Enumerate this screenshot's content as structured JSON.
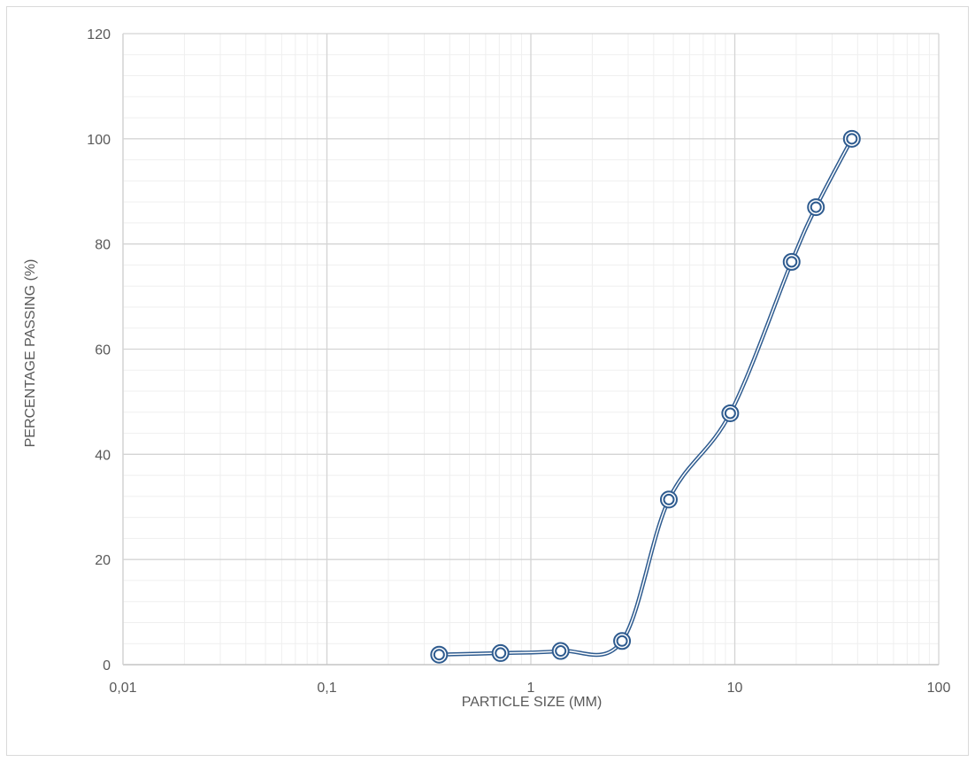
{
  "chart_data": {
    "type": "scatter",
    "title": "",
    "xlabel": "PARTICLE SIZE (MM)",
    "ylabel": "PERCENTAGE PASSING (%)",
    "x_scale": "log",
    "xlim": [
      0.01,
      100
    ],
    "ylim": [
      0,
      120
    ],
    "x_tick_labels": [
      "0,01",
      "0,1",
      "1",
      "10",
      "100"
    ],
    "y_tick_labels": [
      "0",
      "20",
      "40",
      "60",
      "80",
      "100",
      "120"
    ],
    "grid": true,
    "legend": "none",
    "line_style": "smoothed-double",
    "marker": "double-circle",
    "series": [
      {
        "x": [
          0.355,
          0.71,
          1.4,
          2.8,
          4.75,
          9.5,
          19,
          25,
          37.5
        ],
        "y": [
          1.9,
          2.2,
          2.6,
          4.5,
          31.4,
          47.8,
          76.6,
          87.0,
          100.0
        ],
        "color": "#2e5b8f"
      }
    ]
  }
}
